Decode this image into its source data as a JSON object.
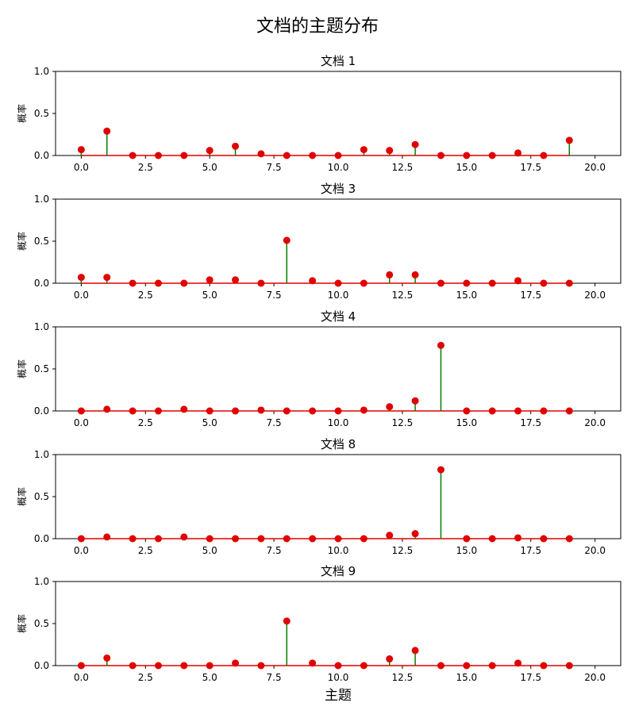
{
  "figure": {
    "title": "文档的主题分布",
    "xlabel": "主题",
    "ylabel": "概率"
  },
  "chart_data": [
    {
      "type": "stem",
      "title": "文档 1",
      "ylabel": "概率",
      "xlabel": "",
      "xlim": [
        -1,
        21
      ],
      "ylim": [
        0,
        1.0
      ],
      "xticks": [
        "0.0",
        "2.5",
        "5.0",
        "7.5",
        "10.0",
        "12.5",
        "15.0",
        "17.5",
        "20.0"
      ],
      "yticks": [
        "0.0",
        "0.5",
        "1.0"
      ],
      "grid": false,
      "x": [
        0,
        1,
        2,
        3,
        4,
        5,
        6,
        7,
        8,
        9,
        10,
        11,
        12,
        13,
        14,
        15,
        16,
        17,
        18,
        19
      ],
      "values": [
        0.07,
        0.29,
        0.0,
        0.0,
        0.0,
        0.06,
        0.11,
        0.02,
        0.0,
        0.0,
        0.0,
        0.07,
        0.06,
        0.13,
        0.0,
        0.0,
        0.0,
        0.03,
        0.0,
        0.18
      ],
      "colors": {
        "stem": "#008000",
        "marker": "#e00000",
        "baseline": "#e00000"
      }
    },
    {
      "type": "stem",
      "title": "文档 3",
      "ylabel": "概率",
      "xlabel": "",
      "xlim": [
        -1,
        21
      ],
      "ylim": [
        0,
        1.0
      ],
      "xticks": [
        "0.0",
        "2.5",
        "5.0",
        "7.5",
        "10.0",
        "12.5",
        "15.0",
        "17.5",
        "20.0"
      ],
      "yticks": [
        "0.0",
        "0.5",
        "1.0"
      ],
      "grid": false,
      "x": [
        0,
        1,
        2,
        3,
        4,
        5,
        6,
        7,
        8,
        9,
        10,
        11,
        12,
        13,
        14,
        15,
        16,
        17,
        18,
        19
      ],
      "values": [
        0.07,
        0.07,
        0.0,
        0.0,
        0.0,
        0.04,
        0.04,
        0.0,
        0.51,
        0.03,
        0.0,
        0.0,
        0.1,
        0.1,
        0.0,
        0.0,
        0.0,
        0.03,
        0.0,
        0.0
      ],
      "colors": {
        "stem": "#008000",
        "marker": "#e00000",
        "baseline": "#e00000"
      }
    },
    {
      "type": "stem",
      "title": "文档 4",
      "ylabel": "概率",
      "xlabel": "",
      "xlim": [
        -1,
        21
      ],
      "ylim": [
        0,
        1.0
      ],
      "xticks": [
        "0.0",
        "2.5",
        "5.0",
        "7.5",
        "10.0",
        "12.5",
        "15.0",
        "17.5",
        "20.0"
      ],
      "yticks": [
        "0.0",
        "0.5",
        "1.0"
      ],
      "grid": false,
      "x": [
        0,
        1,
        2,
        3,
        4,
        5,
        6,
        7,
        8,
        9,
        10,
        11,
        12,
        13,
        14,
        15,
        16,
        17,
        18,
        19
      ],
      "values": [
        0.0,
        0.02,
        0.0,
        0.0,
        0.02,
        0.0,
        0.0,
        0.01,
        0.0,
        0.0,
        0.0,
        0.01,
        0.05,
        0.12,
        0.78,
        0.0,
        0.0,
        0.0,
        0.0,
        0.0
      ],
      "colors": {
        "stem": "#008000",
        "marker": "#e00000",
        "baseline": "#e00000"
      }
    },
    {
      "type": "stem",
      "title": "文档 8",
      "ylabel": "概率",
      "xlabel": "",
      "xlim": [
        -1,
        21
      ],
      "ylim": [
        0,
        1.0
      ],
      "xticks": [
        "0.0",
        "2.5",
        "5.0",
        "7.5",
        "10.0",
        "12.5",
        "15.0",
        "17.5",
        "20.0"
      ],
      "yticks": [
        "0.0",
        "0.5",
        "1.0"
      ],
      "grid": false,
      "x": [
        0,
        1,
        2,
        3,
        4,
        5,
        6,
        7,
        8,
        9,
        10,
        11,
        12,
        13,
        14,
        15,
        16,
        17,
        18,
        19
      ],
      "values": [
        0.0,
        0.02,
        0.0,
        0.0,
        0.02,
        0.0,
        0.0,
        0.0,
        0.0,
        0.0,
        0.0,
        0.0,
        0.04,
        0.06,
        0.82,
        0.0,
        0.0,
        0.01,
        0.0,
        0.0
      ],
      "colors": {
        "stem": "#008000",
        "marker": "#e00000",
        "baseline": "#e00000"
      }
    },
    {
      "type": "stem",
      "title": "文档 9",
      "ylabel": "概率",
      "xlabel": "主题",
      "xlim": [
        -1,
        21
      ],
      "ylim": [
        0,
        1.0
      ],
      "xticks": [
        "0.0",
        "2.5",
        "5.0",
        "7.5",
        "10.0",
        "12.5",
        "15.0",
        "17.5",
        "20.0"
      ],
      "yticks": [
        "0.0",
        "0.5",
        "1.0"
      ],
      "grid": false,
      "x": [
        0,
        1,
        2,
        3,
        4,
        5,
        6,
        7,
        8,
        9,
        10,
        11,
        12,
        13,
        14,
        15,
        16,
        17,
        18,
        19
      ],
      "values": [
        0.0,
        0.09,
        0.0,
        0.0,
        0.0,
        0.0,
        0.03,
        0.0,
        0.53,
        0.03,
        0.0,
        0.0,
        0.08,
        0.18,
        0.0,
        0.0,
        0.0,
        0.03,
        0.0,
        0.0
      ],
      "colors": {
        "stem": "#008000",
        "marker": "#e00000",
        "baseline": "#e00000"
      }
    }
  ]
}
